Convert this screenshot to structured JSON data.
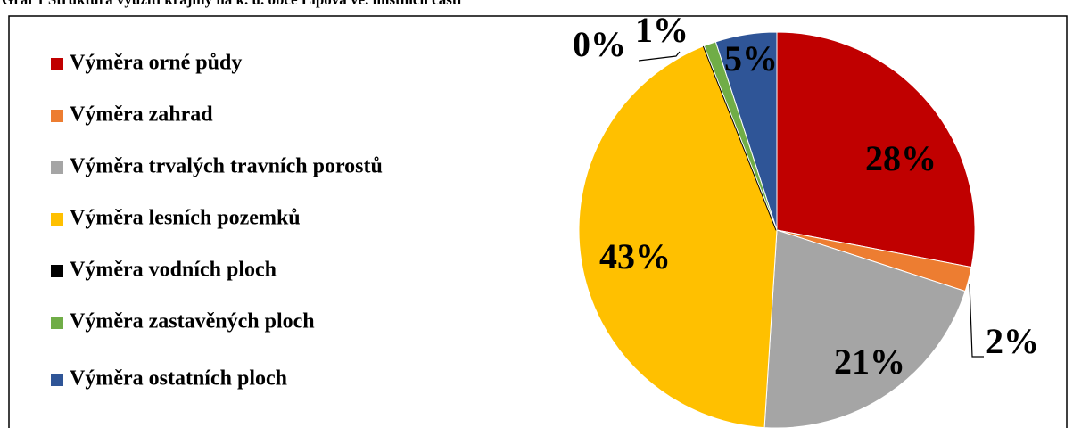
{
  "chart_data": {
    "type": "pie",
    "title": "Graf 1 Struktura využití krajiny na k. ú. obce Lipová ve. místních části",
    "categories": [
      "Výměra orné půdy",
      "Výměra zahrad",
      "Výměra trvalých travních porostů",
      "Výměra lesních pozemků",
      "Výměra vodních ploch",
      "Výměra zastavěných ploch",
      "Výměra ostatních ploch"
    ],
    "values": [
      28,
      2,
      21,
      43,
      0,
      1,
      5
    ],
    "value_labels": [
      "28%",
      "2%",
      "21%",
      "43%",
      "0%",
      "1%",
      "5%"
    ],
    "colors": [
      "#c00000",
      "#ed7d31",
      "#a5a5a5",
      "#ffc000",
      "#000000",
      "#70ad47",
      "#2f5597"
    ],
    "legend": "left"
  }
}
